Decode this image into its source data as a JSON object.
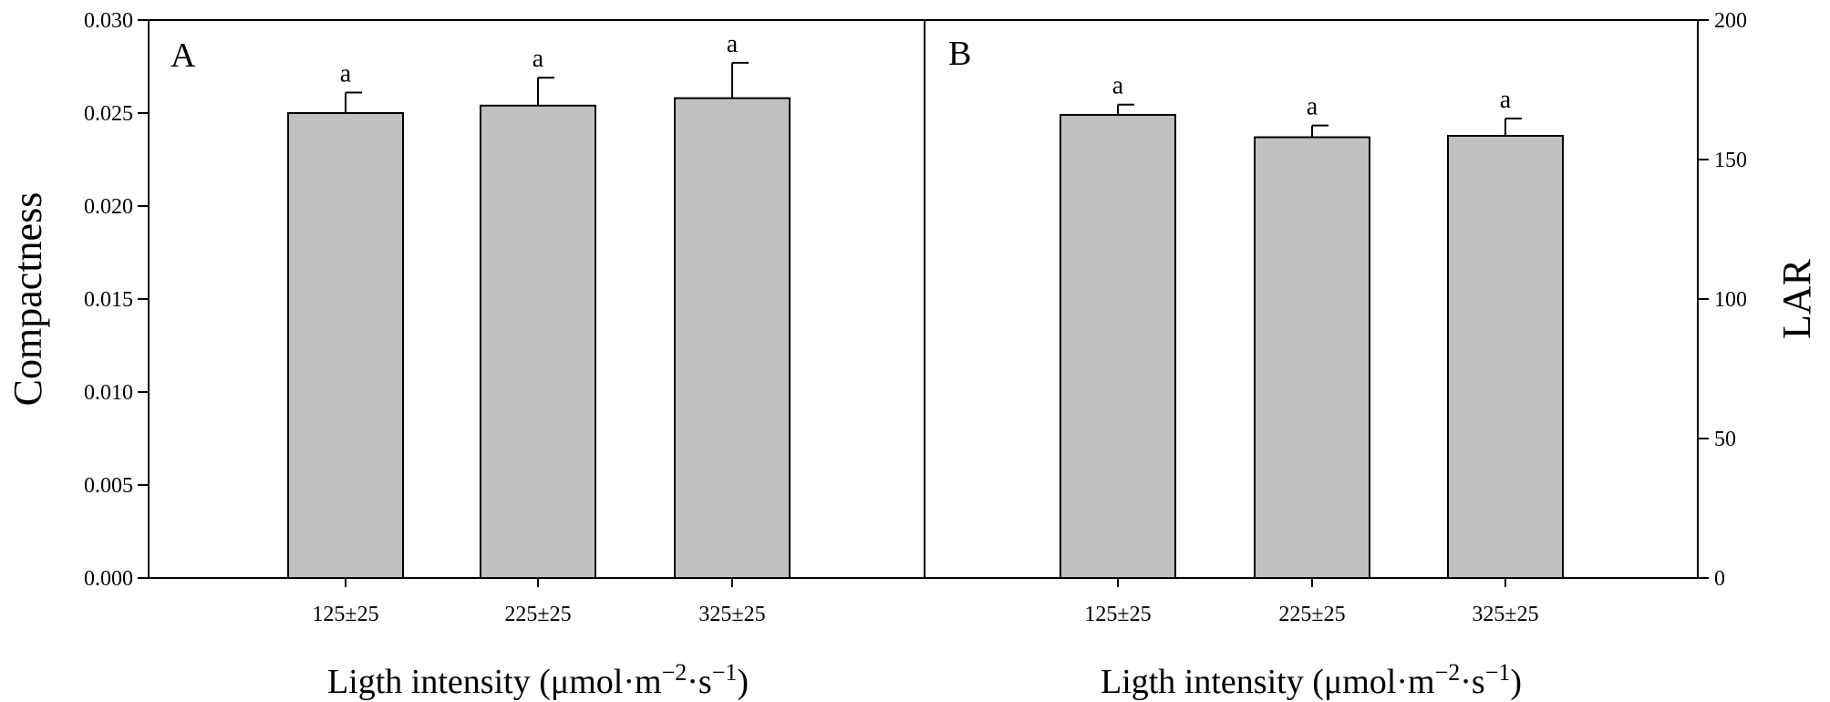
{
  "chart_data": [
    {
      "panel_label": "A",
      "type": "bar",
      "categories": [
        "125±25",
        "225±25",
        "325±25"
      ],
      "values": [
        0.025,
        0.0254,
        0.0258
      ],
      "errors": [
        0.0011,
        0.0015,
        0.0019
      ],
      "significance": [
        "a",
        "a",
        "a"
      ],
      "ylabel": "Compactness",
      "xlabel_main": "Ligth intensity (μmol·m",
      "xlabel_sup1": "−2",
      "xlabel_mid": "·s",
      "xlabel_sup2": "−1",
      "xlabel_end": ")",
      "ylim": [
        0,
        0.03
      ],
      "yticks": [
        "0.000",
        "0.005",
        "0.010",
        "0.015",
        "0.020",
        "0.025",
        "0.030"
      ],
      "ytick_values": [
        0,
        0.005,
        0.01,
        0.015,
        0.02,
        0.025,
        0.03
      ],
      "y_axis_side": "left",
      "bar_color": "#c0c0c0",
      "grid": false
    },
    {
      "panel_label": "B",
      "type": "bar",
      "categories": [
        "125±25",
        "225±25",
        "325±25"
      ],
      "values": [
        166,
        158,
        158.5
      ],
      "errors": [
        3.7,
        4.2,
        6.2
      ],
      "significance": [
        "a",
        "a",
        "a"
      ],
      "ylabel": "LAR",
      "xlabel_main": "Ligth intensity (μmol·m",
      "xlabel_sup1": "−2",
      "xlabel_mid": "·s",
      "xlabel_sup2": "−1",
      "xlabel_end": ")",
      "ylim": [
        0,
        200
      ],
      "yticks": [
        "0",
        "50",
        "100",
        "150",
        "200"
      ],
      "ytick_values": [
        0,
        50,
        100,
        150,
        200
      ],
      "y_axis_side": "right",
      "bar_color": "#c0c0c0",
      "grid": false
    }
  ]
}
